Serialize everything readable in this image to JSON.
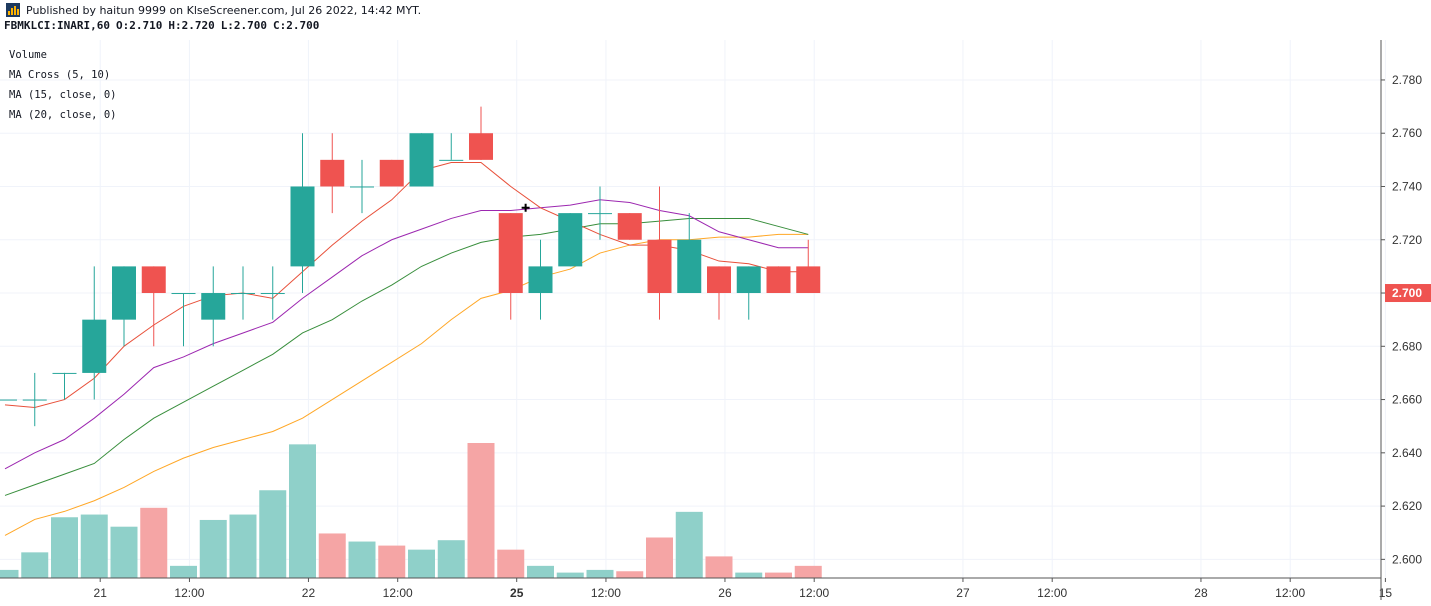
{
  "header": {
    "published": "Published by haitun 9999 on KlseScreener.com, Jul 26 2022, 14:42 MYT.",
    "symbol": "FBMKLCI:INARI,60",
    "open": "O:2.710",
    "high": "H:2.720",
    "low": "L:2.700",
    "close": "C:2.700"
  },
  "legend": [
    "Volume",
    "MA Cross (5, 10)",
    "MA (15, close, 0)",
    "MA (20, close, 0)"
  ],
  "colors": {
    "up": "#26a69a",
    "down": "#ef5350",
    "volume_up": "#8fd0c9",
    "volume_down": "#f5a5a5",
    "ma_fast": "#e8503a",
    "ma_slow": "#9c27b0",
    "ma15": "#388e3c",
    "ma20": "#ffa726",
    "price_tag": "#ef5350"
  },
  "chart_data": {
    "type": "candlestick",
    "y_ticks": [
      "2.780",
      "2.760",
      "2.740",
      "2.720",
      "2.700",
      "2.680",
      "2.660",
      "2.640",
      "2.620",
      "2.600"
    ],
    "ylim": [
      2.593,
      2.795
    ],
    "last_price": "2.700",
    "x_ticks": [
      {
        "label": "21",
        "bold": false,
        "t": 3.2
      },
      {
        "label": "12:00",
        "bold": false,
        "t": 6.2
      },
      {
        "label": "22",
        "bold": false,
        "t": 10.2
      },
      {
        "label": "12:00",
        "bold": false,
        "t": 13.2
      },
      {
        "label": "25",
        "bold": true,
        "t": 17.2
      },
      {
        "label": "12:00",
        "bold": false,
        "t": 20.2
      },
      {
        "label": "26",
        "bold": false,
        "t": 24.2
      },
      {
        "label": "12:00",
        "bold": false,
        "t": 27.2
      },
      {
        "label": "27",
        "bold": false,
        "t": 32.2
      },
      {
        "label": "12:00",
        "bold": false,
        "t": 35.2
      },
      {
        "label": "28",
        "bold": false,
        "t": 40.2
      },
      {
        "label": "12:00",
        "bold": false,
        "t": 43.2
      },
      {
        "label": "15",
        "bold": false,
        "t": 46.4
      }
    ],
    "candles": [
      {
        "o": 2.66,
        "h": 2.66,
        "l": 2.66,
        "c": 2.66
      },
      {
        "o": 2.66,
        "h": 2.67,
        "l": 2.65,
        "c": 2.66
      },
      {
        "o": 2.67,
        "h": 2.67,
        "l": 2.66,
        "c": 2.67
      },
      {
        "o": 2.67,
        "h": 2.71,
        "l": 2.66,
        "c": 2.69
      },
      {
        "o": 2.69,
        "h": 2.71,
        "l": 2.68,
        "c": 2.71
      },
      {
        "o": 2.71,
        "h": 2.71,
        "l": 2.68,
        "c": 2.7
      },
      {
        "o": 2.7,
        "h": 2.7,
        "l": 2.68,
        "c": 2.7
      },
      {
        "o": 2.69,
        "h": 2.71,
        "l": 2.68,
        "c": 2.7
      },
      {
        "o": 2.7,
        "h": 2.71,
        "l": 2.69,
        "c": 2.7
      },
      {
        "o": 2.7,
        "h": 2.71,
        "l": 2.69,
        "c": 2.7
      },
      {
        "o": 2.71,
        "h": 2.76,
        "l": 2.7,
        "c": 2.74
      },
      {
        "o": 2.75,
        "h": 2.76,
        "l": 2.73,
        "c": 2.74
      },
      {
        "o": 2.74,
        "h": 2.75,
        "l": 2.73,
        "c": 2.74
      },
      {
        "o": 2.75,
        "h": 2.75,
        "l": 2.74,
        "c": 2.74
      },
      {
        "o": 2.74,
        "h": 2.76,
        "l": 2.74,
        "c": 2.76
      },
      {
        "o": 2.75,
        "h": 2.76,
        "l": 2.75,
        "c": 2.75
      },
      {
        "o": 2.76,
        "h": 2.77,
        "l": 2.75,
        "c": 2.75
      },
      {
        "o": 2.73,
        "h": 2.73,
        "l": 2.69,
        "c": 2.7
      },
      {
        "o": 2.7,
        "h": 2.72,
        "l": 2.69,
        "c": 2.71
      },
      {
        "o": 2.71,
        "h": 2.73,
        "l": 2.71,
        "c": 2.73
      },
      {
        "o": 2.73,
        "h": 2.74,
        "l": 2.72,
        "c": 2.73
      },
      {
        "o": 2.73,
        "h": 2.73,
        "l": 2.72,
        "c": 2.72
      },
      {
        "o": 2.72,
        "h": 2.74,
        "l": 2.69,
        "c": 2.7
      },
      {
        "o": 2.7,
        "h": 2.73,
        "l": 2.7,
        "c": 2.72
      },
      {
        "o": 2.71,
        "h": 2.71,
        "l": 2.69,
        "c": 2.7
      },
      {
        "o": 2.7,
        "h": 2.71,
        "l": 2.69,
        "c": 2.71
      },
      {
        "o": 2.71,
        "h": 2.71,
        "l": 2.7,
        "c": 2.7
      },
      {
        "o": 2.71,
        "h": 2.72,
        "l": 2.7,
        "c": 2.7
      }
    ],
    "volume": [
      {
        "v": 0.06,
        "up": true
      },
      {
        "v": 0.19,
        "up": true
      },
      {
        "v": 0.45,
        "up": true
      },
      {
        "v": 0.47,
        "up": true
      },
      {
        "v": 0.38,
        "up": true
      },
      {
        "v": 0.52,
        "up": false
      },
      {
        "v": 0.09,
        "up": true
      },
      {
        "v": 0.43,
        "up": true
      },
      {
        "v": 0.47,
        "up": true
      },
      {
        "v": 0.65,
        "up": true
      },
      {
        "v": 0.99,
        "up": true
      },
      {
        "v": 0.33,
        "up": false
      },
      {
        "v": 0.27,
        "up": true
      },
      {
        "v": 0.24,
        "up": false
      },
      {
        "v": 0.21,
        "up": true
      },
      {
        "v": 0.28,
        "up": true
      },
      {
        "v": 1.0,
        "up": false
      },
      {
        "v": 0.21,
        "up": false
      },
      {
        "v": 0.09,
        "up": true
      },
      {
        "v": 0.04,
        "up": true
      },
      {
        "v": 0.06,
        "up": true
      },
      {
        "v": 0.05,
        "up": false
      },
      {
        "v": 0.3,
        "up": false
      },
      {
        "v": 0.49,
        "up": true
      },
      {
        "v": 0.16,
        "up": false
      },
      {
        "v": 0.04,
        "up": true
      },
      {
        "v": 0.04,
        "up": false
      },
      {
        "v": 0.09,
        "up": false
      }
    ],
    "ma_cross_fast": [
      2.658,
      2.657,
      2.66,
      2.668,
      2.68,
      2.688,
      2.695,
      2.699,
      2.7,
      2.698,
      2.708,
      2.718,
      2.727,
      2.735,
      2.746,
      2.749,
      2.749,
      2.74,
      2.732,
      2.727,
      2.722,
      2.718,
      2.718,
      2.716,
      2.712,
      2.711,
      2.708,
      2.708
    ],
    "ma_cross_slow": [
      2.634,
      2.64,
      2.645,
      2.653,
      2.662,
      2.672,
      2.676,
      2.681,
      2.685,
      2.689,
      2.698,
      2.706,
      2.714,
      2.72,
      2.724,
      2.728,
      2.731,
      2.731,
      2.732,
      2.733,
      2.735,
      2.734,
      2.731,
      2.729,
      2.723,
      2.72,
      2.717,
      2.717
    ],
    "ma15": [
      2.624,
      2.628,
      2.632,
      2.636,
      2.645,
      2.653,
      2.659,
      2.665,
      2.671,
      2.677,
      2.685,
      2.69,
      2.697,
      2.703,
      2.71,
      2.715,
      2.719,
      2.721,
      2.722,
      2.724,
      2.726,
      2.726,
      2.727,
      2.728,
      2.728,
      2.728,
      2.725,
      2.722
    ],
    "ma20": [
      2.609,
      2.615,
      2.618,
      2.622,
      2.627,
      2.633,
      2.638,
      2.642,
      2.645,
      2.648,
      2.653,
      2.66,
      2.667,
      2.674,
      2.681,
      2.69,
      2.698,
      2.701,
      2.706,
      2.709,
      2.715,
      2.718,
      2.72,
      2.72,
      2.721,
      2.721,
      2.722,
      2.722
    ],
    "ma_cross_marker": {
      "t": 17.5,
      "y": 2.732
    }
  }
}
